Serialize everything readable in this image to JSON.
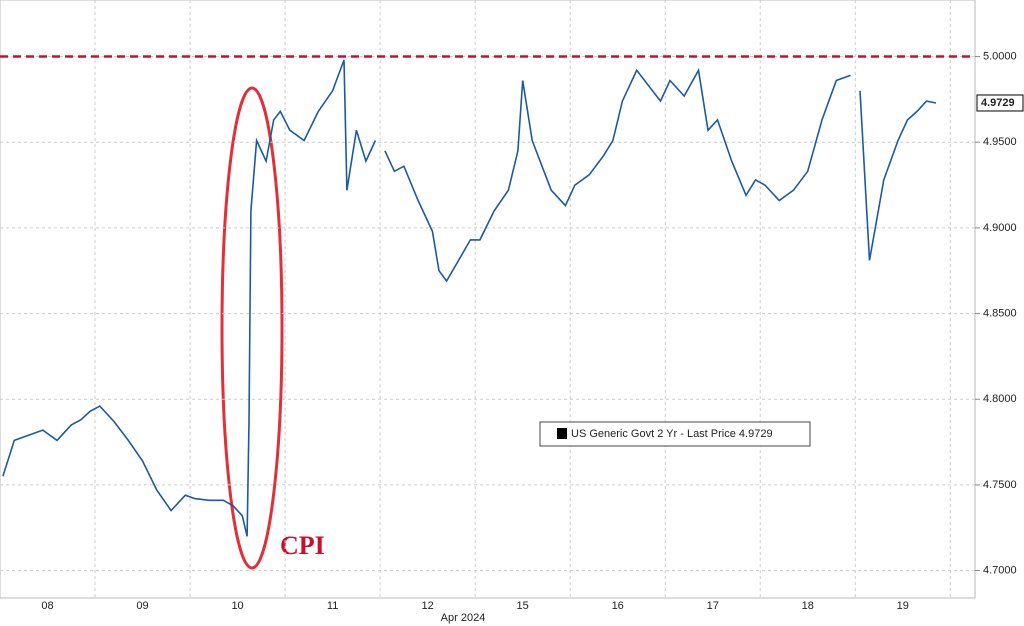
{
  "chart_data": {
    "type": "line",
    "x_label": "Apr 2024",
    "xlim": [
      0,
      10.26
    ],
    "xticks": [
      {
        "value": 0.5,
        "label": "08"
      },
      {
        "value": 1.5,
        "label": "09"
      },
      {
        "value": 2.5,
        "label": "10"
      },
      {
        "value": 3.5,
        "label": "11"
      },
      {
        "value": 4.5,
        "label": "12"
      },
      {
        "value": 5.5,
        "label": "15"
      },
      {
        "value": 6.5,
        "label": "16"
      },
      {
        "value": 7.5,
        "label": "17"
      },
      {
        "value": 8.5,
        "label": "18"
      },
      {
        "value": 9.5,
        "label": "19"
      }
    ],
    "ylim": [
      4.684,
      5.033
    ],
    "yticks": [
      {
        "value": 4.7,
        "label": "4.7000"
      },
      {
        "value": 4.75,
        "label": "4.7500"
      },
      {
        "value": 4.8,
        "label": "4.8000"
      },
      {
        "value": 4.85,
        "label": "4.8500"
      },
      {
        "value": 4.9,
        "label": "4.9000"
      },
      {
        "value": 4.95,
        "label": "4.9500"
      },
      {
        "value": 5.0,
        "label": "5.0000"
      }
    ],
    "grid": true,
    "reference_line": 5.0,
    "reference_color": "#c8102e",
    "annotation": "CPI",
    "last_value": {
      "value": 4.9729,
      "label": "4.9729"
    },
    "x": [
      0.03,
      0.15,
      0.3,
      0.45,
      0.6,
      0.75,
      0.85,
      0.95,
      1.05,
      1.2,
      1.35,
      1.5,
      1.65,
      1.8,
      1.95,
      2.05,
      2.2,
      2.35,
      2.45,
      2.55,
      2.6,
      2.62,
      2.64,
      2.7,
      2.8,
      2.88,
      2.95,
      3.05,
      3.2,
      3.35,
      3.5,
      3.62,
      3.65,
      3.75,
      3.85,
      3.95,
      4.0,
      4.05,
      4.15,
      4.25,
      4.4,
      4.55,
      4.62,
      4.7,
      4.95,
      5.05,
      5.2,
      5.35,
      5.45,
      5.5,
      5.6,
      5.8,
      5.95,
      6.05,
      6.2,
      6.35,
      6.45,
      6.55,
      6.7,
      6.95,
      7.05,
      7.2,
      7.35,
      7.45,
      7.55,
      7.7,
      7.85,
      7.95,
      8.05,
      8.2,
      8.35,
      8.5,
      8.65,
      8.8,
      8.95,
      9.0,
      9.05,
      9.15,
      9.3,
      9.45,
      9.55,
      9.65,
      9.75,
      9.85
    ],
    "series": [
      {
        "name": "US Generic Govt 2 Yr - Last Price 4.9729",
        "color": "#1c5a9e",
        "values": [
          4.755,
          4.776,
          4.779,
          4.782,
          4.776,
          4.785,
          4.788,
          4.793,
          4.796,
          4.787,
          4.776,
          4.764,
          4.747,
          4.735,
          4.744,
          4.742,
          4.741,
          4.741,
          4.738,
          4.732,
          4.72,
          4.787,
          4.91,
          4.951,
          4.939,
          4.963,
          4.968,
          4.957,
          4.951,
          4.968,
          4.98,
          4.998,
          4.922,
          4.957,
          4.939,
          4.951,
          null,
          4.945,
          4.933,
          4.936,
          4.916,
          4.898,
          4.875,
          4.869,
          4.893,
          4.893,
          4.91,
          4.922,
          4.945,
          4.986,
          4.951,
          4.922,
          4.913,
          4.925,
          4.931,
          4.942,
          4.951,
          4.974,
          4.992,
          4.974,
          4.986,
          4.977,
          4.992,
          4.957,
          4.963,
          4.939,
          4.919,
          4.928,
          4.925,
          4.916,
          4.922,
          4.933,
          4.963,
          4.986,
          4.989,
          null,
          4.98,
          4.881,
          4.928,
          4.951,
          4.963,
          4.968,
          4.974,
          4.9729
        ]
      }
    ]
  }
}
